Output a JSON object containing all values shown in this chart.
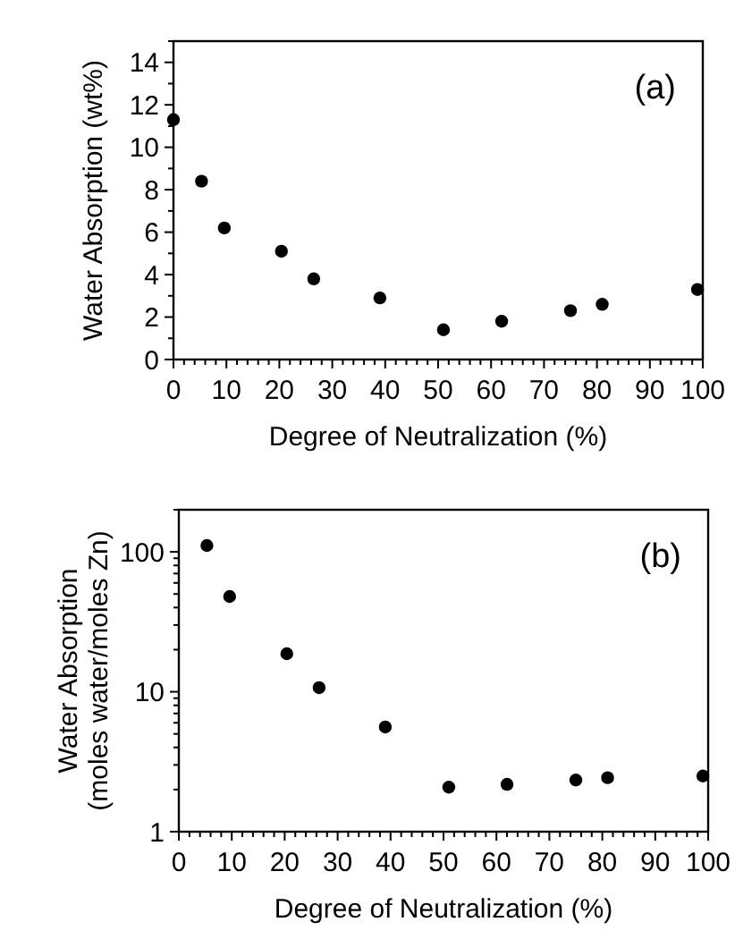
{
  "chart_data": [
    {
      "type": "scatter",
      "xlabel": "Degree of Neutralization (%)",
      "ylabel": "Water Absorption (wt%)",
      "annotations": [
        "(a)"
      ],
      "marker": "circle",
      "grid": false,
      "xlim": [
        0,
        100
      ],
      "xticks": [
        0,
        {
          "value": 2,
          "label": null
        },
        {
          "value": 4,
          "label": null
        },
        {
          "value": 6,
          "label": null
        },
        {
          "value": 8,
          "label": null
        },
        10,
        {
          "value": 12,
          "label": null
        },
        {
          "value": 14,
          "label": null
        },
        {
          "value": 16,
          "label": null
        },
        {
          "value": 18,
          "label": null
        },
        20,
        {
          "value": 22,
          "label": null
        },
        {
          "value": 24,
          "label": null
        },
        {
          "value": 26,
          "label": null
        },
        {
          "value": 28,
          "label": null
        },
        30,
        {
          "value": 32,
          "label": null
        },
        {
          "value": 34,
          "label": null
        },
        {
          "value": 36,
          "label": null
        },
        {
          "value": 38,
          "label": null
        },
        40,
        {
          "value": 42,
          "label": null
        },
        {
          "value": 44,
          "label": null
        },
        {
          "value": 46,
          "label": null
        },
        {
          "value": 48,
          "label": null
        },
        50,
        {
          "value": 52,
          "label": null
        },
        {
          "value": 54,
          "label": null
        },
        {
          "value": 56,
          "label": null
        },
        {
          "value": 58,
          "label": null
        },
        60,
        {
          "value": 62,
          "label": null
        },
        {
          "value": 64,
          "label": null
        },
        {
          "value": 66,
          "label": null
        },
        {
          "value": 68,
          "label": null
        },
        70,
        {
          "value": 72,
          "label": null
        },
        {
          "value": 74,
          "label": null
        },
        {
          "value": 76,
          "label": null
        },
        {
          "value": 78,
          "label": null
        },
        80,
        {
          "value": 82,
          "label": null
        },
        {
          "value": 84,
          "label": null
        },
        {
          "value": 86,
          "label": null
        },
        {
          "value": 88,
          "label": null
        },
        90,
        {
          "value": 92,
          "label": null
        },
        {
          "value": 94,
          "label": null
        },
        {
          "value": 96,
          "label": null
        },
        {
          "value": 98,
          "label": null
        },
        100
      ],
      "ylim": [
        0,
        15
      ],
      "yticks": [
        0,
        {
          "value": 1,
          "label": null
        },
        2,
        {
          "value": 3,
          "label": null
        },
        4,
        {
          "value": 5,
          "label": null
        },
        6,
        {
          "value": 7,
          "label": null
        },
        8,
        {
          "value": 9,
          "label": null
        },
        10,
        {
          "value": 11,
          "label": null
        },
        12,
        {
          "value": 13,
          "label": null
        },
        14,
        {
          "value": 15,
          "label": null
        }
      ],
      "series": [
        {
          "color": "#000000",
          "x": [
            0,
            5.3,
            9.6,
            20.4,
            26.5,
            39,
            51,
            62,
            75,
            81,
            99
          ],
          "values": [
            11.3,
            8.4,
            6.2,
            5.1,
            3.8,
            2.9,
            1.4,
            1.8,
            2.3,
            2.6,
            3.3
          ]
        }
      ]
    },
    {
      "type": "scatter",
      "xlabel": "Degree of Neutralization (%)",
      "ylabel": "Water Absorption\n(moles water/moles Zn)",
      "annotations": [
        "(b)"
      ],
      "marker": "circle",
      "grid": false,
      "log": "y",
      "xlim": [
        0,
        100
      ],
      "xticks": [
        0,
        {
          "value": 2,
          "label": null
        },
        {
          "value": 4,
          "label": null
        },
        {
          "value": 6,
          "label": null
        },
        {
          "value": 8,
          "label": null
        },
        10,
        {
          "value": 12,
          "label": null
        },
        {
          "value": 14,
          "label": null
        },
        {
          "value": 16,
          "label": null
        },
        {
          "value": 18,
          "label": null
        },
        20,
        {
          "value": 22,
          "label": null
        },
        {
          "value": 24,
          "label": null
        },
        {
          "value": 26,
          "label": null
        },
        {
          "value": 28,
          "label": null
        },
        30,
        {
          "value": 32,
          "label": null
        },
        {
          "value": 34,
          "label": null
        },
        {
          "value": 36,
          "label": null
        },
        {
          "value": 38,
          "label": null
        },
        40,
        {
          "value": 42,
          "label": null
        },
        {
          "value": 44,
          "label": null
        },
        {
          "value": 46,
          "label": null
        },
        {
          "value": 48,
          "label": null
        },
        50,
        {
          "value": 52,
          "label": null
        },
        {
          "value": 54,
          "label": null
        },
        {
          "value": 56,
          "label": null
        },
        {
          "value": 58,
          "label": null
        },
        60,
        {
          "value": 62,
          "label": null
        },
        {
          "value": 64,
          "label": null
        },
        {
          "value": 66,
          "label": null
        },
        {
          "value": 68,
          "label": null
        },
        70,
        {
          "value": 72,
          "label": null
        },
        {
          "value": 74,
          "label": null
        },
        {
          "value": 76,
          "label": null
        },
        {
          "value": 78,
          "label": null
        },
        80,
        {
          "value": 82,
          "label": null
        },
        {
          "value": 84,
          "label": null
        },
        {
          "value": 86,
          "label": null
        },
        {
          "value": 88,
          "label": null
        },
        90,
        {
          "value": 92,
          "label": null
        },
        {
          "value": 94,
          "label": null
        },
        {
          "value": 96,
          "label": null
        },
        {
          "value": 98,
          "label": null
        },
        100
      ],
      "ylim": [
        1,
        200
      ],
      "yticks": [
        1,
        {
          "value": 2,
          "label": null
        },
        {
          "value": 3,
          "label": null
        },
        {
          "value": 4,
          "label": null
        },
        {
          "value": 5,
          "label": null
        },
        {
          "value": 6,
          "label": null
        },
        {
          "value": 7,
          "label": null
        },
        {
          "value": 8,
          "label": null
        },
        {
          "value": 9,
          "label": null
        },
        10,
        {
          "value": 20,
          "label": null
        },
        {
          "value": 30,
          "label": null
        },
        {
          "value": 40,
          "label": null
        },
        {
          "value": 50,
          "label": null
        },
        {
          "value": 60,
          "label": null
        },
        {
          "value": 70,
          "label": null
        },
        {
          "value": 80,
          "label": null
        },
        {
          "value": 90,
          "label": null
        },
        100,
        {
          "value": 200,
          "label": null
        }
      ],
      "series": [
        {
          "color": "#000000",
          "x": [
            5.3,
            9.6,
            20.4,
            26.5,
            39,
            51,
            62,
            75,
            81,
            99
          ],
          "values": [
            111,
            48,
            18.7,
            10.7,
            5.6,
            2.08,
            2.18,
            2.34,
            2.43,
            2.5
          ]
        }
      ]
    }
  ]
}
